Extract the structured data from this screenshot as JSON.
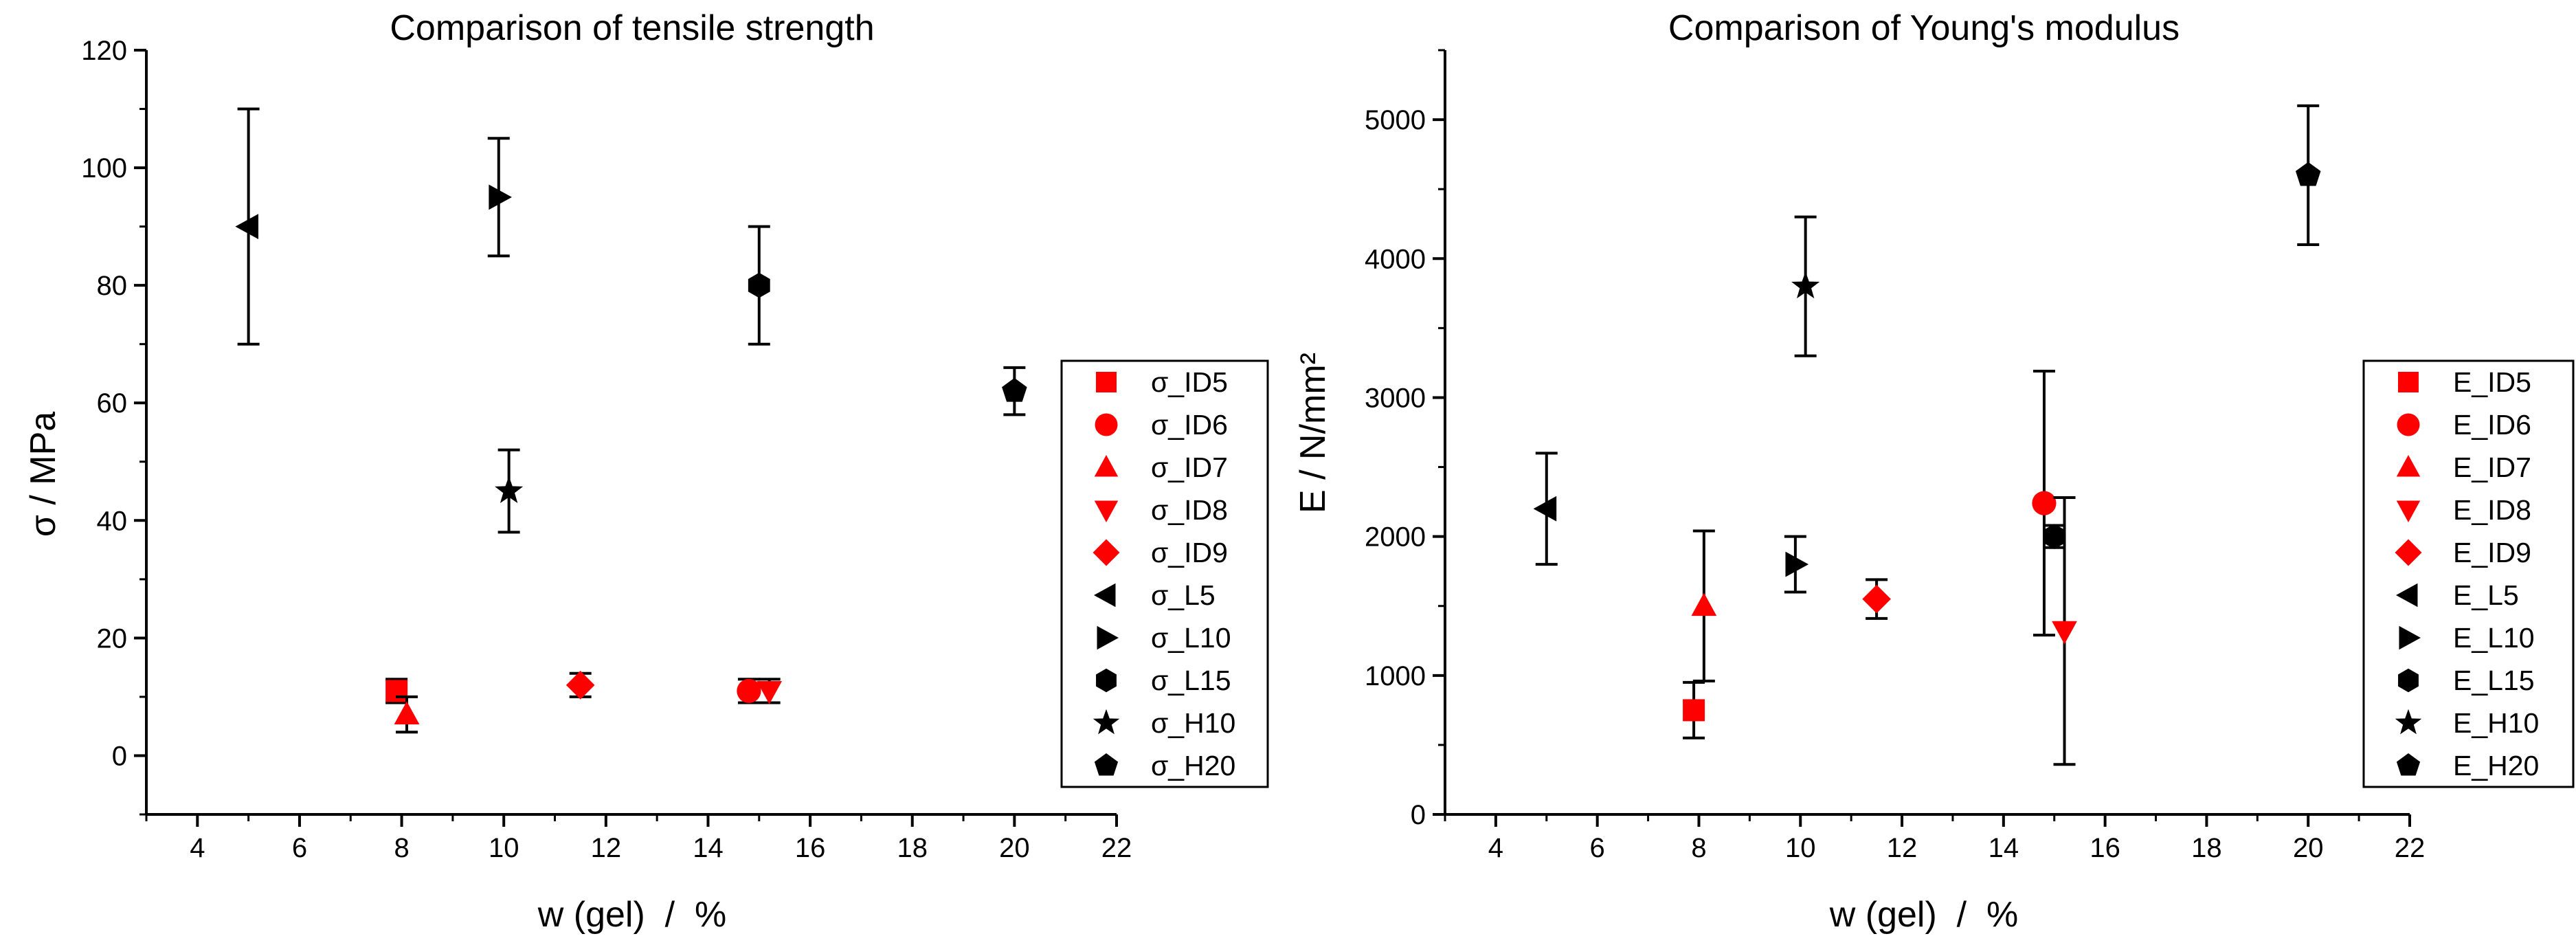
{
  "colors": {
    "red": "#ff0000",
    "black": "#000000"
  },
  "chart_data": [
    {
      "type": "scatter",
      "title": "Comparison of tensile strength",
      "xlabel": "w (gel)  /  %",
      "ylabel": "σ / MPa",
      "xlim": [
        3,
        22
      ],
      "ylim": [
        -10,
        120
      ],
      "xticks": [
        4,
        6,
        8,
        10,
        12,
        14,
        16,
        18,
        20,
        22
      ],
      "yticks": [
        0,
        20,
        40,
        60,
        80,
        100,
        120
      ],
      "legend_position": "right",
      "series": [
        {
          "name": "σ_ID5",
          "marker": "square",
          "color": "#ff0000",
          "x": 7.9,
          "y": 11,
          "err": 2
        },
        {
          "name": "σ_ID6",
          "marker": "circle",
          "color": "#ff0000",
          "x": 14.8,
          "y": 11,
          "err": 2
        },
        {
          "name": "σ_ID7",
          "marker": "triangle-up",
          "color": "#ff0000",
          "x": 8.1,
          "y": 7,
          "err": 3
        },
        {
          "name": "σ_ID8",
          "marker": "triangle-down",
          "color": "#ff0000",
          "x": 15.2,
          "y": 11,
          "err": 2
        },
        {
          "name": "σ_ID9",
          "marker": "diamond",
          "color": "#ff0000",
          "x": 11.5,
          "y": 12,
          "err": 2
        },
        {
          "name": "σ_L5",
          "marker": "triangle-left",
          "color": "#000000",
          "x": 5,
          "y": 90,
          "err": 20
        },
        {
          "name": "σ_L10",
          "marker": "triangle-right",
          "color": "#000000",
          "x": 9.9,
          "y": 95,
          "err": 10
        },
        {
          "name": "σ_L15",
          "marker": "hexagon",
          "color": "#000000",
          "x": 15,
          "y": 80,
          "err": 10
        },
        {
          "name": "σ_H10",
          "marker": "star",
          "color": "#000000",
          "x": 10.1,
          "y": 45,
          "err": 7
        },
        {
          "name": "σ_H20",
          "marker": "pentagon",
          "color": "#000000",
          "x": 20,
          "y": 62,
          "err": 4
        }
      ]
    },
    {
      "type": "scatter",
      "title": "Comparison of Young's modulus",
      "xlabel": "w (gel)  /  %",
      "ylabel": "E / N/mm²",
      "xlim": [
        3,
        22
      ],
      "ylim": [
        0,
        5500
      ],
      "xticks": [
        4,
        6,
        8,
        10,
        12,
        14,
        16,
        18,
        20,
        22
      ],
      "yticks": [
        0,
        1000,
        2000,
        3000,
        4000,
        5000
      ],
      "legend_position": "right",
      "series": [
        {
          "name": "E_ID5",
          "marker": "square",
          "color": "#ff0000",
          "x": 7.9,
          "y": 750,
          "err": 200
        },
        {
          "name": "E_ID6",
          "marker": "circle",
          "color": "#ff0000",
          "x": 14.8,
          "y": 2240,
          "err": 950
        },
        {
          "name": "E_ID7",
          "marker": "triangle-up",
          "color": "#ff0000",
          "x": 8.1,
          "y": 1500,
          "err": 540
        },
        {
          "name": "E_ID8",
          "marker": "triangle-down",
          "color": "#ff0000",
          "x": 15.2,
          "y": 1320,
          "err": 960
        },
        {
          "name": "E_ID9",
          "marker": "diamond",
          "color": "#ff0000",
          "x": 11.5,
          "y": 1550,
          "err": 140
        },
        {
          "name": "E_L5",
          "marker": "triangle-left",
          "color": "#000000",
          "x": 5,
          "y": 2200,
          "err": 400
        },
        {
          "name": "E_L10",
          "marker": "triangle-right",
          "color": "#000000",
          "x": 9.9,
          "y": 1800,
          "err": 200
        },
        {
          "name": "E_L15",
          "marker": "hexagon",
          "color": "#000000",
          "x": 15,
          "y": 2000,
          "err": 80
        },
        {
          "name": "E_H10",
          "marker": "star",
          "color": "#000000",
          "x": 10.1,
          "y": 3800,
          "err": 500
        },
        {
          "name": "E_H20",
          "marker": "pentagon",
          "color": "#000000",
          "x": 20,
          "y": 4600,
          "err": 500
        }
      ]
    }
  ]
}
